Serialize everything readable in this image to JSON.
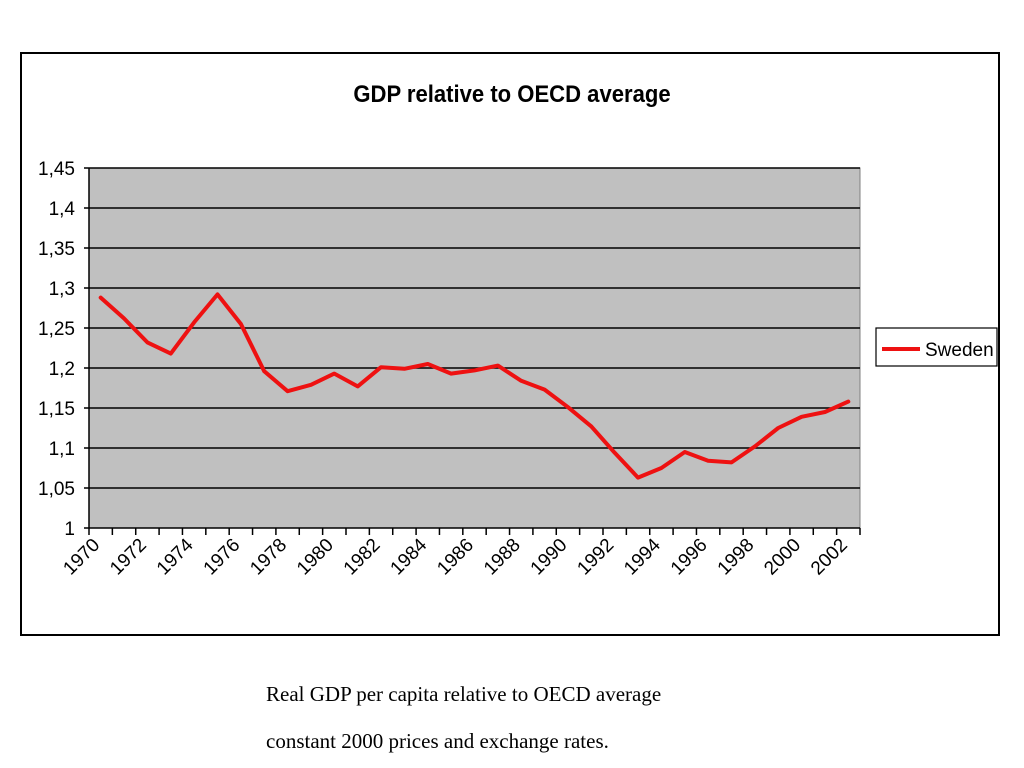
{
  "chart_data": {
    "type": "line",
    "title": "GDP relative to OECD average",
    "xlabel": "",
    "ylabel": "",
    "x": [
      1970,
      1971,
      1972,
      1973,
      1974,
      1975,
      1976,
      1977,
      1978,
      1979,
      1980,
      1981,
      1982,
      1983,
      1984,
      1985,
      1986,
      1987,
      1988,
      1989,
      1990,
      1991,
      1992,
      1993,
      1994,
      1995,
      1996,
      1997,
      1998,
      1999,
      2000,
      2001,
      2002
    ],
    "xticks": [
      "1970",
      "1972",
      "1974",
      "1976",
      "1978",
      "1980",
      "1982",
      "1984",
      "1986",
      "1988",
      "1990",
      "1992",
      "1994",
      "1996",
      "1998",
      "2000",
      "2002"
    ],
    "ylim": [
      1,
      1.45
    ],
    "yticks": [
      "1",
      "1,05",
      "1,1",
      "1,15",
      "1,2",
      "1,25",
      "1,3",
      "1,35",
      "1,4",
      "1,45"
    ],
    "series": [
      {
        "name": "Sweden",
        "color": "#ee1111",
        "values": [
          1.288,
          1.262,
          1.232,
          1.218,
          1.257,
          1.292,
          1.255,
          1.196,
          1.171,
          1.179,
          1.193,
          1.177,
          1.201,
          1.199,
          1.205,
          1.193,
          1.197,
          1.203,
          1.184,
          1.173,
          1.151,
          1.127,
          1.094,
          1.063,
          1.075,
          1.095,
          1.084,
          1.082,
          1.102,
          1.125,
          1.139,
          1.145,
          1.158
        ]
      }
    ],
    "grid": true,
    "plot_background": "#c0c0c0",
    "legend": "right"
  },
  "caption": {
    "line1": "Real GDP per capita relative to OECD average",
    "line2": "constant 2000 prices and exchange rates."
  }
}
